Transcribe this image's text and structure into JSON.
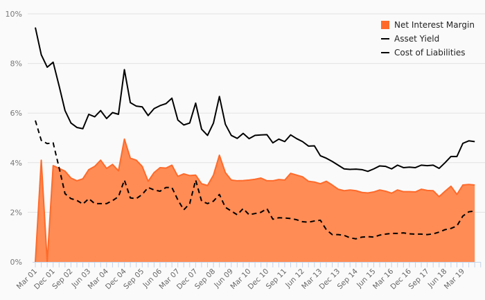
{
  "chart_data": {
    "type": "area",
    "title": "",
    "xlabel": "",
    "ylabel": "",
    "ylim": [
      0,
      10
    ],
    "y_ticks": [
      0,
      2,
      4,
      6,
      8,
      10
    ],
    "y_tick_labels": [
      "0%",
      "2%",
      "4%",
      "6%",
      "8%",
      "10%"
    ],
    "x_note": "quarterly, Mar 01 to Sep 19",
    "x_tick_labels": [
      "Mar 01",
      "Dec 01",
      "Sep 02",
      "Jun 03",
      "Mar 04",
      "Dec 04",
      "Sep 05",
      "Jun 06",
      "Mar 07",
      "Dec 07",
      "Sep 08",
      "Jun 09",
      "Mar 10",
      "Dec 10",
      "Sep 11",
      "Jun 12",
      "Mar 13",
      "Dec 13",
      "Sep 14",
      "Jun 15",
      "Mar 16",
      "Dec 16",
      "Sep 17",
      "Jun 18",
      "Mar 19"
    ],
    "grid": true,
    "legend_position": "top-right",
    "series": [
      {
        "name": "Net Interest Margin",
        "style": "area",
        "color": "#ff6a2a",
        "values": [
          0,
          4.1,
          0,
          3.88,
          3.77,
          3.66,
          3.38,
          3.27,
          3.35,
          3.72,
          3.85,
          4.1,
          3.77,
          3.93,
          3.67,
          4.95,
          4.18,
          4.1,
          3.85,
          3.25,
          3.6,
          3.8,
          3.78,
          3.9,
          3.45,
          3.55,
          3.48,
          3.5,
          3.15,
          3.08,
          3.5,
          4.3,
          3.6,
          3.3,
          3.27,
          3.28,
          3.3,
          3.33,
          3.38,
          3.27,
          3.27,
          3.32,
          3.3,
          3.57,
          3.5,
          3.43,
          3.25,
          3.22,
          3.15,
          3.25,
          3.1,
          2.93,
          2.87,
          2.9,
          2.87,
          2.8,
          2.78,
          2.82,
          2.9,
          2.85,
          2.77,
          2.9,
          2.83,
          2.83,
          2.82,
          2.93,
          2.88,
          2.87,
          2.63,
          2.85,
          3.05,
          2.72,
          3.1,
          3.12,
          3.1
        ]
      },
      {
        "name": "Asset Yield",
        "style": "solid",
        "color": "#000000",
        "values": [
          9.45,
          8.35,
          7.85,
          8.05,
          7.1,
          6.1,
          5.6,
          5.42,
          5.37,
          5.95,
          5.85,
          6.1,
          5.78,
          6.02,
          5.95,
          7.75,
          6.42,
          6.28,
          6.25,
          5.9,
          6.18,
          6.3,
          6.38,
          6.6,
          5.72,
          5.52,
          5.6,
          6.4,
          5.35,
          5.1,
          5.6,
          6.67,
          5.55,
          5.1,
          4.98,
          5.18,
          4.97,
          5.1,
          5.12,
          5.13,
          4.8,
          4.95,
          4.85,
          5.12,
          4.97,
          4.85,
          4.67,
          4.68,
          4.28,
          4.18,
          4.05,
          3.9,
          3.75,
          3.73,
          3.74,
          3.72,
          3.65,
          3.75,
          3.87,
          3.85,
          3.75,
          3.9,
          3.8,
          3.82,
          3.8,
          3.9,
          3.88,
          3.9,
          3.77,
          4.0,
          4.25,
          4.25,
          4.78,
          4.88,
          4.85
        ]
      },
      {
        "name": "Cost of Liabilities",
        "style": "dashed",
        "color": "#000000",
        "values": [
          5.7,
          4.9,
          4.77,
          4.8,
          3.8,
          2.75,
          2.55,
          2.48,
          2.33,
          2.55,
          2.35,
          2.35,
          2.35,
          2.47,
          2.63,
          3.3,
          2.58,
          2.55,
          2.72,
          3.0,
          2.9,
          2.85,
          3.0,
          3.0,
          2.5,
          2.1,
          2.35,
          3.3,
          2.45,
          2.35,
          2.45,
          2.72,
          2.2,
          2.05,
          1.9,
          2.15,
          1.9,
          1.95,
          2.0,
          2.15,
          1.72,
          1.78,
          1.77,
          1.75,
          1.7,
          1.62,
          1.6,
          1.65,
          1.68,
          1.3,
          1.1,
          1.1,
          1.07,
          0.97,
          0.93,
          1.0,
          1.02,
          1.0,
          1.08,
          1.12,
          1.15,
          1.15,
          1.17,
          1.13,
          1.12,
          1.12,
          1.1,
          1.13,
          1.2,
          1.3,
          1.35,
          1.45,
          1.85,
          2.02,
          2.05
        ]
      }
    ]
  },
  "legend": {
    "items": [
      "Net Interest Margin",
      "Asset Yield",
      "Cost of Liabilities"
    ]
  }
}
